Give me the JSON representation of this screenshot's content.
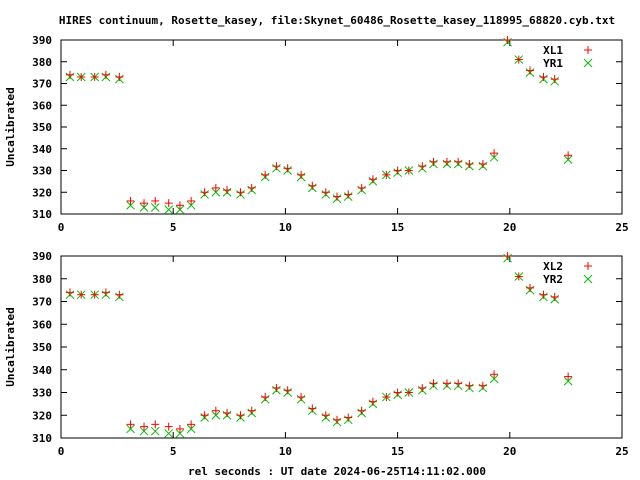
{
  "title": "HIRES continuum, Rosette_kasey, file:Skynet_60486_Rosette_kasey_118995_68820.cyb.txt",
  "xlabel": "rel seconds : UT date 2024-06-25T14:11:02.000",
  "colors": {
    "series_a": "#ff0000",
    "series_b": "#00c000",
    "axes": "#000000"
  },
  "chart_data": [
    {
      "type": "scatter",
      "ylabel": "Uncalibrated",
      "xlim": [
        0,
        25
      ],
      "ylim": [
        310,
        390
      ],
      "xticks": [
        "0",
        "5",
        "10",
        "15",
        "20",
        "25"
      ],
      "yticks": [
        "310",
        "320",
        "330",
        "340",
        "350",
        "360",
        "370",
        "380",
        "390"
      ],
      "legend_position": "top-right",
      "grid": false,
      "series": [
        {
          "name": "XL1",
          "marker": "plus",
          "x": [
            0.4,
            0.9,
            1.5,
            2.0,
            2.6,
            3.1,
            3.7,
            4.2,
            4.8,
            5.3,
            5.8,
            6.4,
            6.9,
            7.4,
            8.0,
            8.5,
            9.1,
            9.6,
            10.1,
            10.7,
            11.2,
            11.8,
            12.3,
            12.8,
            13.4,
            13.9,
            14.5,
            15.0,
            15.5,
            16.1,
            16.6,
            17.2,
            17.7,
            18.2,
            18.8,
            19.3,
            19.9,
            20.4,
            20.9,
            21.5,
            22.0,
            22.6
          ],
          "y": [
            374,
            373,
            373,
            374,
            373,
            316,
            315,
            316,
            315,
            314,
            316,
            320,
            322,
            321,
            320,
            322,
            328,
            332,
            331,
            328,
            323,
            320,
            318,
            319,
            322,
            326,
            328,
            330,
            330,
            332,
            334,
            334,
            334,
            333,
            333,
            338,
            390,
            381,
            376,
            373,
            372,
            337
          ]
        },
        {
          "name": "YR1",
          "marker": "cross",
          "x": [
            0.4,
            0.9,
            1.5,
            2.0,
            2.6,
            3.1,
            3.7,
            4.2,
            4.8,
            5.3,
            5.8,
            6.4,
            6.9,
            7.4,
            8.0,
            8.5,
            9.1,
            9.6,
            10.1,
            10.7,
            11.2,
            11.8,
            12.3,
            12.8,
            13.4,
            13.9,
            14.5,
            15.0,
            15.5,
            16.1,
            16.6,
            17.2,
            17.7,
            18.2,
            18.8,
            19.3,
            19.9,
            20.4,
            20.9,
            21.5,
            22.0,
            22.6
          ],
          "y": [
            373,
            373,
            373,
            373,
            372,
            314,
            313,
            313,
            312,
            312,
            314,
            319,
            320,
            320,
            319,
            321,
            327,
            331,
            330,
            327,
            322,
            319,
            317,
            318,
            321,
            325,
            328,
            329,
            330,
            331,
            333,
            333,
            333,
            332,
            332,
            336,
            389,
            381,
            375,
            372,
            371,
            335
          ]
        }
      ]
    },
    {
      "type": "scatter",
      "ylabel": "Uncalibrated",
      "xlim": [
        0,
        25
      ],
      "ylim": [
        310,
        390
      ],
      "xticks": [
        "0",
        "5",
        "10",
        "15",
        "20",
        "25"
      ],
      "yticks": [
        "310",
        "320",
        "330",
        "340",
        "350",
        "360",
        "370",
        "380",
        "390"
      ],
      "legend_position": "top-right",
      "grid": false,
      "series": [
        {
          "name": "XL2",
          "marker": "plus",
          "x": [
            0.4,
            0.9,
            1.5,
            2.0,
            2.6,
            3.1,
            3.7,
            4.2,
            4.8,
            5.3,
            5.8,
            6.4,
            6.9,
            7.4,
            8.0,
            8.5,
            9.1,
            9.6,
            10.1,
            10.7,
            11.2,
            11.8,
            12.3,
            12.8,
            13.4,
            13.9,
            14.5,
            15.0,
            15.5,
            16.1,
            16.6,
            17.2,
            17.7,
            18.2,
            18.8,
            19.3,
            19.9,
            20.4,
            20.9,
            21.5,
            22.0,
            22.6
          ],
          "y": [
            374,
            373,
            373,
            374,
            373,
            316,
            315,
            316,
            315,
            314,
            316,
            320,
            322,
            321,
            320,
            322,
            328,
            332,
            331,
            328,
            323,
            320,
            318,
            319,
            322,
            326,
            328,
            330,
            330,
            332,
            334,
            334,
            334,
            333,
            333,
            338,
            390,
            381,
            376,
            373,
            372,
            337
          ]
        },
        {
          "name": "YR2",
          "marker": "cross",
          "x": [
            0.4,
            0.9,
            1.5,
            2.0,
            2.6,
            3.1,
            3.7,
            4.2,
            4.8,
            5.3,
            5.8,
            6.4,
            6.9,
            7.4,
            8.0,
            8.5,
            9.1,
            9.6,
            10.1,
            10.7,
            11.2,
            11.8,
            12.3,
            12.8,
            13.4,
            13.9,
            14.5,
            15.0,
            15.5,
            16.1,
            16.6,
            17.2,
            17.7,
            18.2,
            18.8,
            19.3,
            19.9,
            20.4,
            20.9,
            21.5,
            22.0,
            22.6
          ],
          "y": [
            373,
            373,
            373,
            373,
            372,
            314,
            313,
            313,
            312,
            312,
            314,
            319,
            320,
            320,
            319,
            321,
            327,
            331,
            330,
            327,
            322,
            319,
            317,
            318,
            321,
            325,
            328,
            329,
            330,
            331,
            333,
            333,
            333,
            332,
            332,
            336,
            389,
            381,
            375,
            372,
            371,
            335
          ]
        }
      ]
    }
  ]
}
